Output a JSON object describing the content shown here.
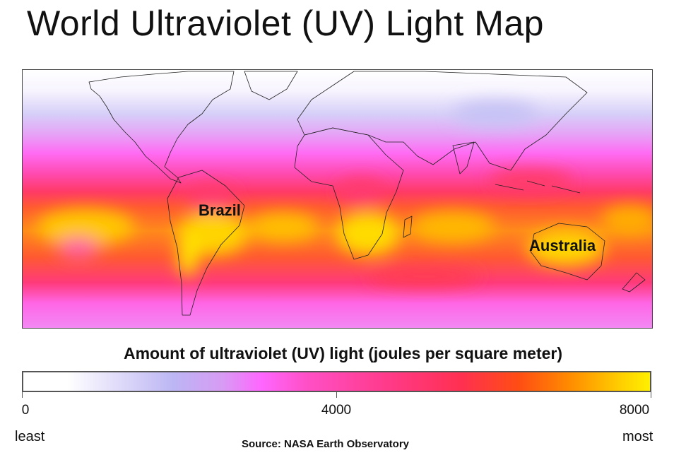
{
  "title": "World Ultraviolet (UV) Light Map",
  "map": {
    "labels": {
      "brazil": "Brazil",
      "australia": "Australia"
    },
    "colors": {
      "low": "#ffffff",
      "lavender": "#bcb6f4",
      "magenta": "#ff66ff",
      "pink": "#ff3a8a",
      "red": "#ff3050",
      "orange": "#ff8a00",
      "high": "#fff000"
    }
  },
  "legend": {
    "title": "Amount of ultraviolet (UV) light (joules per square meter)",
    "ticks": [
      "0",
      "4000",
      "8000"
    ],
    "range": [
      0,
      8000
    ],
    "least": "least",
    "most": "most"
  },
  "source": "Source: NASA Earth Observatory"
}
